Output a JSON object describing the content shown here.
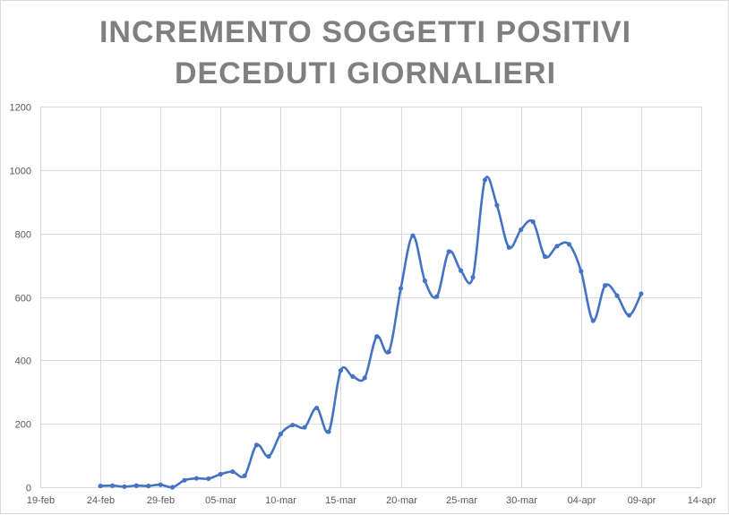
{
  "chart_data": {
    "type": "line",
    "title": "INCREMENTO SOGGETTI POSITIVI",
    "subtitle": "DECEDUTI GIORNALIERI",
    "xlabel": "",
    "ylabel": "",
    "ylim": [
      0,
      1200
    ],
    "xlim": [
      "2020-02-19",
      "2020-04-14"
    ],
    "y_ticks": [
      0,
      200,
      400,
      600,
      800,
      1000,
      1200
    ],
    "x_ticks": [
      {
        "date": "2020-02-19",
        "label": "19-feb"
      },
      {
        "date": "2020-02-24",
        "label": "24-feb"
      },
      {
        "date": "2020-02-29",
        "label": "29-feb"
      },
      {
        "date": "2020-03-05",
        "label": "05-mar"
      },
      {
        "date": "2020-03-10",
        "label": "10-mar"
      },
      {
        "date": "2020-03-15",
        "label": "15-mar"
      },
      {
        "date": "2020-03-20",
        "label": "20-mar"
      },
      {
        "date": "2020-03-25",
        "label": "25-mar"
      },
      {
        "date": "2020-03-30",
        "label": "30-mar"
      },
      {
        "date": "2020-04-04",
        "label": "04-apr"
      },
      {
        "date": "2020-04-09",
        "label": "09-apr"
      },
      {
        "date": "2020-04-14",
        "label": "14-apr"
      }
    ],
    "grid": true,
    "legend": "none",
    "smooth": true,
    "line_color": "#4472c4",
    "series": [
      {
        "x": [
          "2020-02-24",
          "2020-02-25",
          "2020-02-26",
          "2020-02-27",
          "2020-02-28",
          "2020-02-29",
          "2020-03-01",
          "2020-03-02",
          "2020-03-03",
          "2020-03-04",
          "2020-03-05",
          "2020-03-06",
          "2020-03-07",
          "2020-03-08",
          "2020-03-09",
          "2020-03-10",
          "2020-03-11",
          "2020-03-12",
          "2020-03-13",
          "2020-03-14",
          "2020-03-15",
          "2020-03-16",
          "2020-03-17",
          "2020-03-18",
          "2020-03-19",
          "2020-03-20",
          "2020-03-21",
          "2020-03-22",
          "2020-03-23",
          "2020-03-24",
          "2020-03-25",
          "2020-03-26",
          "2020-03-27",
          "2020-03-28",
          "2020-03-29",
          "2020-03-30",
          "2020-03-31",
          "2020-04-01",
          "2020-04-02",
          "2020-04-03",
          "2020-04-04",
          "2020-04-05",
          "2020-04-06",
          "2020-04-07",
          "2020-04-08",
          "2020-04-09"
        ],
        "values": [
          4,
          5,
          2,
          5,
          4,
          8,
          0,
          22,
          28,
          27,
          41,
          49,
          36,
          133,
          97,
          168,
          196,
          189,
          250,
          175,
          368,
          349,
          345,
          475,
          427,
          627,
          793,
          651,
          601,
          743,
          683,
          662,
          969,
          889,
          756,
          812,
          837,
          727,
          760,
          766,
          681,
          525,
          636,
          604,
          542,
          610
        ]
      }
    ]
  }
}
